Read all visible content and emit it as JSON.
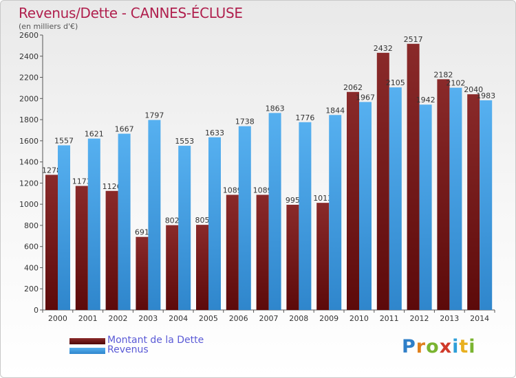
{
  "chart_data": {
    "type": "bar",
    "title": "Revenus/Dette - CANNES-ÉCLUSE",
    "subtitle": "(en milliers d'€)",
    "categories": [
      "2000",
      "2001",
      "2002",
      "2003",
      "2004",
      "2005",
      "2006",
      "2007",
      "2008",
      "2009",
      "2010",
      "2011",
      "2012",
      "2013",
      "2014"
    ],
    "series": [
      {
        "name": "Montant de la Dette",
        "color": "#7a1a1a",
        "values": [
          1278,
          1173,
          1126,
          691,
          802,
          805,
          1089,
          1089,
          995,
          1013,
          2062,
          2432,
          2517,
          2182,
          2040
        ]
      },
      {
        "name": "Revenus",
        "color": "#3f9ee6",
        "values": [
          1557,
          1621,
          1667,
          1797,
          1553,
          1633,
          1738,
          1863,
          1776,
          1844,
          1967,
          2105,
          1942,
          2102,
          1983
        ]
      }
    ],
    "ylim": [
      0,
      2600
    ],
    "yticks": [
      0,
      200,
      400,
      600,
      800,
      1000,
      1200,
      1400,
      1600,
      1800,
      2000,
      2200,
      2400,
      2600
    ],
    "grid": false,
    "legend_position": "bottom-left"
  },
  "logo": {
    "letters": [
      {
        "ch": "P",
        "color": "#2f7fc8"
      },
      {
        "ch": "r",
        "color": "#e0801c"
      },
      {
        "ch": "o",
        "color": "#7ab430"
      },
      {
        "ch": "x",
        "color": "#d03a2a"
      },
      {
        "ch": "i",
        "color": "#2f9fd8"
      },
      {
        "ch": "t",
        "color": "#e8b020"
      },
      {
        "ch": "i",
        "color": "#7ab430"
      }
    ]
  }
}
